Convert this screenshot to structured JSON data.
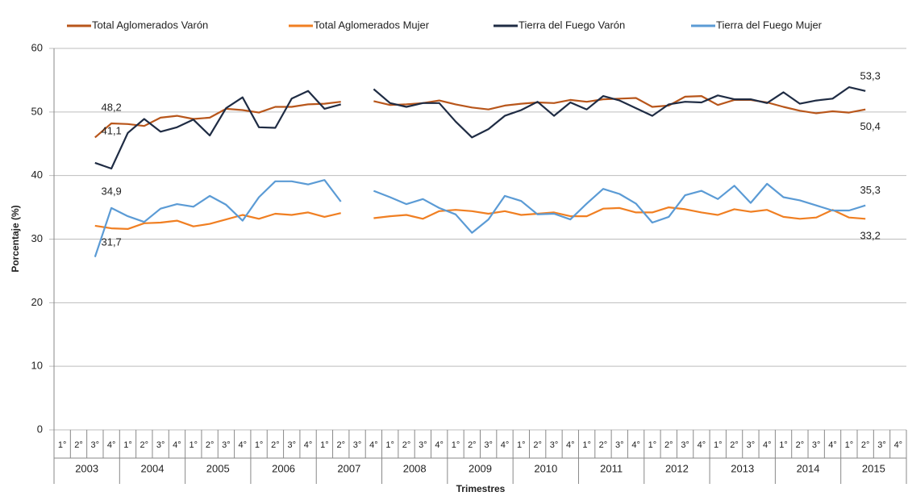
{
  "chart_data": {
    "type": "line",
    "y_label": "Porcentaje (%)",
    "x_label": "Trimestres",
    "categories": [
      "1°",
      "2°",
      "3°",
      "4°",
      "1°",
      "2°",
      "3°",
      "4°",
      "1°",
      "2°",
      "3°",
      "4°",
      "1°",
      "2°",
      "3°",
      "4°",
      "1°",
      "2°",
      "3°",
      "4°",
      "1°",
      "2°",
      "3°",
      "4°",
      "1°",
      "2°",
      "3°",
      "4°",
      "1°",
      "2°",
      "3°",
      "4°",
      "1°",
      "2°",
      "3°",
      "4°",
      "1°",
      "2°",
      "3°",
      "4°",
      "1°",
      "2°",
      "3°",
      "4°",
      "1°",
      "2°",
      "3°",
      "4°",
      "1°",
      "2°",
      "3°",
      "4°"
    ],
    "years": [
      "2003",
      "2004",
      "2005",
      "2006",
      "2007",
      "2008",
      "2009",
      "2010",
      "2011",
      "2012",
      "2013",
      "2014",
      "2015"
    ],
    "ylim": [
      0,
      60
    ],
    "yticks": [
      0,
      10,
      20,
      30,
      40,
      50,
      60
    ],
    "grid": true,
    "legend": "top",
    "series": [
      {
        "name": "Total Aglomerados Varón",
        "color": "#b8561b",
        "values": [
          null,
          null,
          46.0,
          48.2,
          48.1,
          47.8,
          49.1,
          49.4,
          48.9,
          49.1,
          50.5,
          50.3,
          49.9,
          50.8,
          50.8,
          51.2,
          51.3,
          51.6,
          null,
          51.7,
          51.1,
          51.2,
          51.4,
          51.8,
          51.2,
          50.7,
          50.4,
          51.0,
          51.3,
          51.5,
          51.4,
          51.9,
          51.6,
          52.0,
          52.1,
          52.2,
          50.8,
          51.0,
          52.4,
          52.5,
          51.1,
          51.9,
          51.9,
          51.5,
          50.8,
          50.2,
          49.8,
          50.1,
          49.9,
          50.4,
          null,
          null
        ],
        "value_labels": [
          null,
          null,
          null,
          "48,2",
          null,
          null,
          null,
          null,
          null,
          null,
          null,
          null,
          null,
          null,
          null,
          null,
          null,
          null,
          null,
          null,
          null,
          null,
          null,
          null,
          null,
          null,
          null,
          null,
          null,
          null,
          null,
          null,
          null,
          null,
          null,
          null,
          null,
          null,
          null,
          null,
          null,
          null,
          null,
          null,
          null,
          null,
          null,
          null,
          null,
          "50,4",
          null,
          null
        ]
      },
      {
        "name": "Total Aglomerados Mujer",
        "color": "#f07f22",
        "values": [
          null,
          null,
          32.1,
          31.7,
          31.6,
          32.5,
          32.6,
          32.9,
          32.0,
          32.4,
          33.1,
          33.8,
          33.2,
          34.0,
          33.8,
          34.2,
          33.5,
          34.1,
          null,
          33.3,
          33.6,
          33.8,
          33.2,
          34.4,
          34.6,
          34.4,
          34.0,
          34.4,
          33.8,
          34.0,
          34.2,
          33.6,
          33.6,
          34.8,
          34.9,
          34.2,
          34.2,
          35.0,
          34.7,
          34.2,
          33.8,
          34.7,
          34.3,
          34.6,
          33.5,
          33.2,
          33.4,
          34.6,
          33.4,
          33.2,
          null,
          null
        ],
        "value_labels": [
          null,
          null,
          null,
          "31,7",
          null,
          null,
          null,
          null,
          null,
          null,
          null,
          null,
          null,
          null,
          null,
          null,
          null,
          null,
          null,
          null,
          null,
          null,
          null,
          null,
          null,
          null,
          null,
          null,
          null,
          null,
          null,
          null,
          null,
          null,
          null,
          null,
          null,
          null,
          null,
          null,
          null,
          null,
          null,
          null,
          null,
          null,
          null,
          null,
          null,
          "33,2",
          null,
          null
        ]
      },
      {
        "name": "Tierra del Fuego Varón",
        "color": "#1f2c44",
        "values": [
          null,
          null,
          42.0,
          41.1,
          46.7,
          48.9,
          46.9,
          47.6,
          48.8,
          46.3,
          50.6,
          52.3,
          47.6,
          47.5,
          52.1,
          53.3,
          50.5,
          51.2,
          null,
          53.6,
          51.4,
          50.8,
          51.4,
          51.4,
          48.5,
          46.0,
          47.3,
          49.4,
          50.3,
          51.6,
          49.4,
          51.5,
          50.4,
          52.5,
          51.8,
          50.6,
          49.4,
          51.2,
          51.6,
          51.5,
          52.6,
          52.0,
          52.0,
          51.4,
          53.1,
          51.3,
          51.8,
          52.1,
          53.9,
          53.3,
          null,
          null
        ],
        "value_labels": [
          null,
          null,
          null,
          "41,1",
          null,
          null,
          null,
          null,
          null,
          null,
          null,
          null,
          null,
          null,
          null,
          null,
          null,
          null,
          null,
          null,
          null,
          null,
          null,
          null,
          null,
          null,
          null,
          null,
          null,
          null,
          null,
          null,
          null,
          null,
          null,
          null,
          null,
          null,
          null,
          null,
          null,
          null,
          null,
          null,
          null,
          null,
          null,
          null,
          null,
          "53,3",
          null,
          null
        ]
      },
      {
        "name": "Tierra del Fuego Mujer",
        "color": "#5b9bd5",
        "values": [
          null,
          null,
          27.2,
          34.9,
          33.6,
          32.7,
          34.8,
          35.5,
          35.1,
          36.8,
          35.4,
          32.9,
          36.6,
          39.1,
          39.1,
          38.6,
          39.3,
          35.9,
          null,
          37.6,
          36.6,
          35.5,
          36.3,
          34.9,
          33.9,
          31.0,
          33.1,
          36.8,
          36.0,
          33.9,
          34.0,
          33.1,
          35.6,
          37.9,
          37.1,
          35.6,
          32.6,
          33.5,
          36.9,
          37.6,
          36.3,
          38.4,
          35.7,
          38.7,
          36.6,
          36.1,
          35.3,
          34.5,
          34.5,
          35.3,
          null,
          null
        ],
        "value_labels": [
          null,
          null,
          null,
          "34,9",
          null,
          null,
          null,
          null,
          null,
          null,
          null,
          null,
          null,
          null,
          null,
          null,
          null,
          null,
          null,
          null,
          null,
          null,
          null,
          null,
          null,
          null,
          null,
          null,
          null,
          null,
          null,
          null,
          null,
          null,
          null,
          null,
          null,
          null,
          null,
          null,
          null,
          null,
          null,
          null,
          null,
          null,
          null,
          null,
          null,
          "35,3",
          null,
          null
        ]
      }
    ]
  }
}
